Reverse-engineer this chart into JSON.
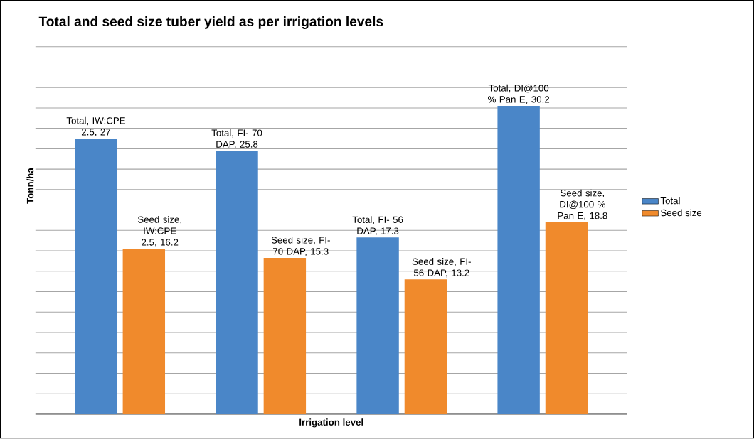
{
  "chart_data": {
    "type": "bar",
    "title": "Total and seed size tuber yield as per irrigation levels",
    "xlabel": "Irrigation level",
    "ylabel": "Tonn/ha",
    "categories": [
      null,
      null,
      null,
      null
    ],
    "series": [
      {
        "name": "Total",
        "color": "#4a86c8",
        "values": [
          27,
          25.8,
          17.3,
          30.2
        ],
        "value_labels": [
          "Total, IW:CPE 2.5, 27",
          "Total, FI- 70 DAP, 25.8",
          "Total, FI- 56 DAP, 17.3",
          "Total, DI@100 % Pan E, 30.2"
        ]
      },
      {
        "name": "Seed size",
        "color": "#f08a2c",
        "values": [
          16.2,
          15.3,
          13.2,
          18.8
        ],
        "value_labels": [
          "Seed size, IW:CPE 2.5, 16.2",
          "Seed size, FI- 70 DAP, 15.3",
          "Seed size, FI- 56 DAP, 13.2",
          "Seed size, DI@100 % Pan E, 18.8"
        ]
      }
    ],
    "grid": "y",
    "legend": "right"
  }
}
